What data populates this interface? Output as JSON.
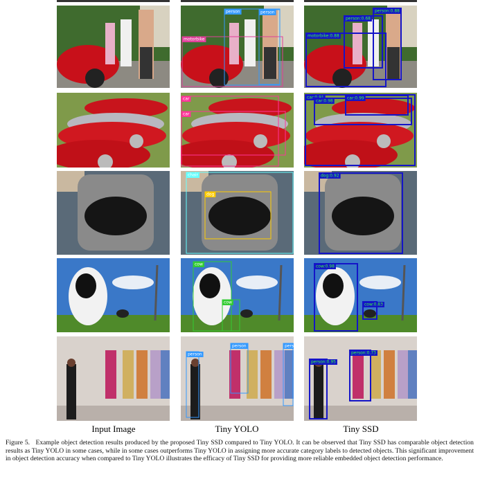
{
  "figure": {
    "columns": [
      "Input Image",
      "Tiny YOLO",
      "Tiny SSD"
    ],
    "rows": [
      {
        "yolo": [
          "motorbike",
          "person",
          "person"
        ],
        "ssd": [
          "motorbike:0.88",
          "person:0.68",
          "person:0.88"
        ]
      },
      {
        "yolo": [
          "car",
          "car"
        ],
        "ssd": [
          "car:0.91",
          "car:0.98",
          "car:0.99"
        ]
      },
      {
        "yolo": [
          "chair",
          "dog"
        ],
        "ssd": [
          "dog:0.92"
        ]
      },
      {
        "yolo": [
          "cow",
          "cow"
        ],
        "ssd": [
          "cow:0.98",
          "cow:0.83"
        ]
      },
      {
        "yolo": [
          "person",
          "person",
          "person"
        ],
        "ssd": [
          "person:0.95",
          "person:0.73"
        ]
      }
    ]
  },
  "caption": {
    "label": "Figure 5.",
    "text": "Example object detection results produced by the proposed Tiny SSD compared to Tiny YOLO. It can be observed that Tiny SSD has comparable object detection results as Tiny YOLO in some cases, while in some cases outperforms Tiny YOLO in assigning more accurate category labels to detected objects. This significant improvement in object detection accuracy when compared to Tiny YOLO illustrates the efficacy of Tiny SSD for providing more reliable embedded object detection performance."
  }
}
